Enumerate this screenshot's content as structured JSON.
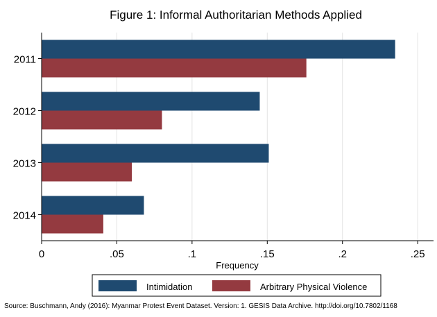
{
  "chart_data": {
    "type": "bar",
    "orientation": "horizontal",
    "title": "Figure 1: Informal Authoritarian Methods Applied",
    "xlabel": "Frequency",
    "ylabel": "",
    "categories": [
      "2011",
      "2012",
      "2013",
      "2014"
    ],
    "series": [
      {
        "name": "Intimidation",
        "color": "#1f4a70",
        "values": [
          0.235,
          0.145,
          0.151,
          0.068
        ]
      },
      {
        "name": "Arbitrary Physical Violence",
        "color": "#943a40",
        "values": [
          0.176,
          0.08,
          0.06,
          0.041
        ]
      }
    ],
    "xlim": [
      0,
      0.255
    ],
    "xticks": [
      0,
      0.05,
      0.1,
      0.15,
      0.2,
      0.25
    ],
    "xtick_labels": [
      "0",
      ".05",
      ".1",
      ".15",
      ".2",
      ".25"
    ],
    "grid": true,
    "legend_position": "bottom"
  },
  "source_note": "Source: Buschmann, Andy (2016): Myanmar Protest Event Dataset. Version: 1. GESIS Data Archive. http://doi.org/10.7802/1168"
}
